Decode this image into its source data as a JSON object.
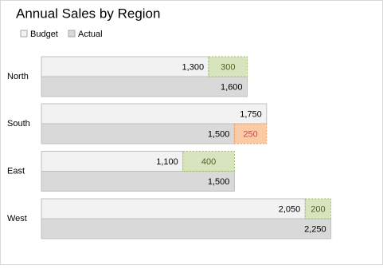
{
  "chart_data": {
    "type": "variance-bar",
    "title": "Annual Sales by Region",
    "categories": [
      "North",
      "South",
      "East",
      "West"
    ],
    "series": [
      {
        "name": "Budget",
        "color": "#f2f2f2",
        "values": [
          1300,
          1750,
          1100,
          2050
        ],
        "value_labels": [
          "1,300",
          "1,750",
          "1,100",
          "2,050"
        ]
      },
      {
        "name": "Actual",
        "color": "#d9d9d9",
        "values": [
          1600,
          1500,
          1500,
          2250
        ],
        "value_labels": [
          "1,600",
          "1,500",
          "1,500",
          "2,250"
        ]
      }
    ],
    "variance": {
      "values": [
        300,
        250,
        400,
        200
      ],
      "colors": [
        "#d7e4bd",
        "#fbcba6",
        "#d7e4bd",
        "#d7e4bd"
      ]
    },
    "xlim": [
      0,
      2500
    ]
  }
}
